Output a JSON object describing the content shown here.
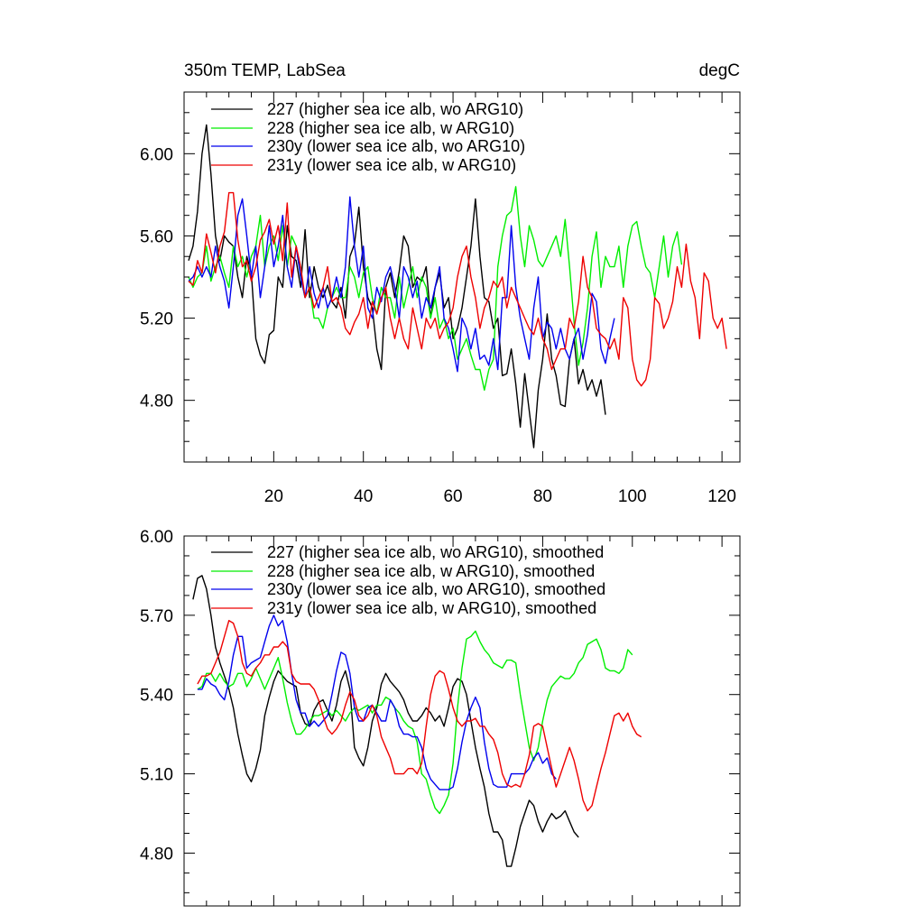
{
  "chart_data": [
    {
      "type": "line",
      "title": "350m TEMP, LabSea",
      "units": "degC",
      "xlim": [
        0,
        124
      ],
      "ylim": [
        4.5,
        6.3
      ],
      "xticks": [
        20,
        40,
        60,
        80,
        100,
        120
      ],
      "xtick_labels": [
        "20",
        "40",
        "60",
        "80",
        "100",
        "120"
      ],
      "yticks": [
        4.8,
        5.2,
        5.6,
        6.0
      ],
      "ytick_labels": [
        "4.80",
        "5.20",
        "5.60",
        "6.00"
      ],
      "legend_position": "top-left",
      "series": [
        {
          "name": "227 (higher sea ice alb, wo ARG10)",
          "color": "#000000",
          "x_start": 1,
          "values": [
            5.48,
            5.55,
            5.72,
            6.0,
            6.14,
            5.9,
            5.6,
            5.48,
            5.6,
            5.57,
            5.55,
            5.4,
            5.3,
            5.5,
            5.42,
            5.1,
            5.02,
            4.98,
            5.12,
            5.14,
            5.4,
            5.35,
            5.65,
            5.5,
            5.48,
            5.35,
            5.63,
            5.3,
            5.45,
            5.35,
            5.3,
            5.36,
            5.28,
            5.25,
            5.35,
            5.2,
            5.5,
            5.56,
            5.74,
            5.45,
            5.3,
            5.25,
            5.05,
            4.95,
            5.35,
            5.42,
            5.3,
            5.43,
            5.6,
            5.55,
            5.35,
            5.4,
            5.38,
            5.45,
            5.2,
            5.35,
            5.42,
            5.25,
            5.3,
            5.1,
            5.15,
            5.25,
            5.4,
            5.55,
            5.78,
            5.5,
            5.3,
            5.28,
            5.15,
            5.2,
            4.92,
            4.93,
            5.05,
            4.88,
            4.67,
            4.93,
            4.75,
            4.57,
            4.85,
            5.0,
            5.22,
            5.0,
            4.92,
            4.78,
            4.77,
            5.0,
            5.1,
            4.88,
            4.95,
            4.85,
            4.9,
            4.82,
            4.9,
            4.73
          ]
        },
        {
          "name": "228 (higher sea ice alb, w ARG10)",
          "color": "#00ee00",
          "x_start": 1,
          "values": [
            5.4,
            5.35,
            5.4,
            5.42,
            5.55,
            5.38,
            5.45,
            5.5,
            5.42,
            5.35,
            5.55,
            5.45,
            5.5,
            5.4,
            5.5,
            5.55,
            5.7,
            5.45,
            5.55,
            5.6,
            5.48,
            5.65,
            5.45,
            5.6,
            5.55,
            5.4,
            5.3,
            5.35,
            5.2,
            5.2,
            5.15,
            5.25,
            5.3,
            5.35,
            5.3,
            5.3,
            5.45,
            5.4,
            5.3,
            5.42,
            5.45,
            5.3,
            5.22,
            5.35,
            5.3,
            5.3,
            5.2,
            5.4,
            5.25,
            5.35,
            5.45,
            5.3,
            5.4,
            5.35,
            5.2,
            5.3,
            5.15,
            5.2,
            5.1,
            5.15,
            5.0,
            5.05,
            5.1,
            5.02,
            4.95,
            4.95,
            4.85,
            4.95,
            5.0,
            5.45,
            5.6,
            5.7,
            5.72,
            5.84,
            5.6,
            5.45,
            5.65,
            5.58,
            5.48,
            5.45,
            5.5,
            5.55,
            5.6,
            5.5,
            5.68,
            5.45,
            5.18,
            4.97,
            5.08,
            5.25,
            5.5,
            5.62,
            5.35,
            5.5,
            5.45,
            5.45,
            5.55,
            5.35,
            5.55,
            5.65,
            5.67,
            5.55,
            5.45,
            5.42,
            5.3,
            5.45,
            5.6,
            5.4,
            5.55,
            5.62,
            5.46
          ]
        },
        {
          "name": "230y (lower sea ice alb, wo ARG10)",
          "color": "#0000ee",
          "x_start": 1,
          "values": [
            5.38,
            5.4,
            5.45,
            5.4,
            5.45,
            5.4,
            5.55,
            5.45,
            5.38,
            5.25,
            5.45,
            5.7,
            5.78,
            5.6,
            5.4,
            5.55,
            5.3,
            5.45,
            5.65,
            5.45,
            5.55,
            5.7,
            5.45,
            5.35,
            5.55,
            5.4,
            5.3,
            5.45,
            5.32,
            5.25,
            5.35,
            5.25,
            5.3,
            5.4,
            5.3,
            5.45,
            5.79,
            5.55,
            5.4,
            5.55,
            5.25,
            5.2,
            5.35,
            5.28,
            5.4,
            5.45,
            5.35,
            5.2,
            5.45,
            5.4,
            5.3,
            5.38,
            5.2,
            5.3,
            5.25,
            5.35,
            5.45,
            5.2,
            5.15,
            5.05,
            4.94,
            5.2,
            5.15,
            5.05,
            5.15,
            5.0,
            5.02,
            4.97,
            5.1,
            4.95,
            5.3,
            5.3,
            5.65,
            5.35,
            5.2,
            5.1,
            5.0,
            5.25,
            5.4,
            5.1,
            5.18,
            5.15,
            5.05,
            5.15,
            5.05,
            5.0,
            5.1,
            5.15,
            5.0,
            5.12,
            5.32,
            5.28,
            5.05,
            4.98,
            5.1,
            5.2
          ]
        },
        {
          "name": "231y (lower sea ice alb, w ARG10)",
          "color": "#ee0000",
          "x_start": 1,
          "values": [
            5.38,
            5.36,
            5.48,
            5.42,
            5.61,
            5.52,
            5.42,
            5.55,
            5.62,
            5.81,
            5.81,
            5.58,
            5.45,
            5.48,
            5.38,
            5.45,
            5.58,
            5.62,
            5.68,
            5.56,
            5.65,
            5.48,
            5.76,
            5.4,
            5.55,
            5.45,
            5.3,
            5.35,
            5.25,
            5.3,
            5.35,
            5.45,
            5.28,
            5.3,
            5.25,
            5.15,
            5.12,
            5.18,
            5.22,
            5.3,
            5.15,
            5.28,
            5.22,
            5.3,
            5.35,
            5.2,
            5.1,
            5.2,
            5.1,
            5.05,
            5.25,
            5.15,
            5.05,
            5.2,
            5.15,
            5.2,
            5.1,
            5.15,
            5.18,
            5.25,
            5.4,
            5.5,
            5.55,
            5.4,
            5.3,
            5.15,
            5.25,
            5.3,
            5.38,
            5.35,
            5.4,
            5.25,
            5.35,
            5.3,
            5.25,
            5.2,
            5.15,
            5.12,
            5.2,
            5.1,
            5.05,
            4.95,
            5.0,
            5.05,
            5.05,
            5.2,
            5.15,
            5.28,
            5.5,
            5.35,
            5.3,
            5.15,
            5.12,
            5.1,
            5.05,
            5.1,
            5.0,
            5.3,
            5.25,
            5.0,
            4.9,
            4.87,
            4.9,
            5.0,
            5.3,
            5.27,
            5.15,
            5.2,
            5.28,
            5.45,
            5.35,
            5.56,
            5.38,
            5.3,
            5.1,
            5.42,
            5.38,
            5.2,
            5.15,
            5.2,
            5.05
          ]
        }
      ]
    },
    {
      "type": "line",
      "title": "",
      "xlim": [
        0,
        124
      ],
      "ylim": [
        4.6,
        6.0
      ],
      "xticks": [
        20,
        40,
        60,
        80,
        100,
        120
      ],
      "yticks": [
        4.8,
        5.1,
        5.4,
        5.7,
        6.0
      ],
      "ytick_labels": [
        "4.80",
        "5.10",
        "5.40",
        "5.70",
        "6.00"
      ],
      "legend_position": "top-left",
      "series": [
        {
          "name": "227 (higher sea ice alb, wo ARG10), smoothed",
          "color": "#000000",
          "x_start": 2,
          "values": [
            5.76,
            5.84,
            5.85,
            5.8,
            5.7,
            5.58,
            5.52,
            5.47,
            5.42,
            5.35,
            5.25,
            5.17,
            5.1,
            5.07,
            5.12,
            5.19,
            5.32,
            5.39,
            5.45,
            5.49,
            5.47,
            5.45,
            5.44,
            5.43,
            5.33,
            5.29,
            5.28,
            5.34,
            5.37,
            5.38,
            5.34,
            5.3,
            5.36,
            5.45,
            5.49,
            5.42,
            5.2,
            5.16,
            5.13,
            5.2,
            5.3,
            5.35,
            5.44,
            5.48,
            5.45,
            5.43,
            5.41,
            5.38,
            5.33,
            5.3,
            5.3,
            5.32,
            5.35,
            5.33,
            5.3,
            5.32,
            5.28,
            5.35,
            5.43,
            5.46,
            5.45,
            5.4,
            5.3,
            5.2,
            5.12,
            5.05,
            4.95,
            4.88,
            4.88,
            4.85,
            4.75,
            4.75,
            4.82,
            4.9,
            4.95,
            5.0,
            4.98,
            4.92,
            4.88,
            4.92,
            4.95,
            4.93,
            4.94,
            4.96,
            4.92,
            4.88,
            4.86
          ]
        },
        {
          "name": "228 (higher sea ice alb, w ARG10), smoothed",
          "color": "#00ee00",
          "x_start": 3,
          "values": [
            5.42,
            5.43,
            5.48,
            5.48,
            5.45,
            5.48,
            5.45,
            5.43,
            5.44,
            5.48,
            5.48,
            5.43,
            5.46,
            5.5,
            5.46,
            5.42,
            5.46,
            5.5,
            5.54,
            5.46,
            5.37,
            5.3,
            5.25,
            5.25,
            5.27,
            5.3,
            5.32,
            5.32,
            5.33,
            5.34,
            5.32,
            5.34,
            5.32,
            5.3,
            5.33,
            5.35,
            5.34,
            5.35,
            5.36,
            5.33,
            5.36,
            5.36,
            5.39,
            5.38,
            5.35,
            5.33,
            5.3,
            5.28,
            5.27,
            5.22,
            5.1,
            5.08,
            5.02,
            4.97,
            4.95,
            4.98,
            5.02,
            5.14,
            5.35,
            5.5,
            5.61,
            5.62,
            5.64,
            5.6,
            5.57,
            5.55,
            5.52,
            5.51,
            5.5,
            5.53,
            5.53,
            5.52,
            5.4,
            5.3,
            5.2,
            5.15,
            5.2,
            5.3,
            5.38,
            5.43,
            5.45,
            5.47,
            5.46,
            5.46,
            5.48,
            5.52,
            5.54,
            5.59,
            5.6,
            5.61,
            5.57,
            5.5,
            5.49,
            5.49,
            5.48,
            5.5,
            5.57,
            5.55
          ]
        },
        {
          "name": "230y (lower sea ice alb, wo ARG10), smoothed",
          "color": "#0000ee",
          "x_start": 3,
          "values": [
            5.42,
            5.42,
            5.46,
            5.44,
            5.43,
            5.4,
            5.38,
            5.45,
            5.55,
            5.62,
            5.62,
            5.5,
            5.52,
            5.53,
            5.54,
            5.6,
            5.66,
            5.7,
            5.66,
            5.68,
            5.6,
            5.48,
            5.38,
            5.33,
            5.33,
            5.28,
            5.3,
            5.28,
            5.3,
            5.32,
            5.4,
            5.49,
            5.56,
            5.55,
            5.48,
            5.35,
            5.3,
            5.3,
            5.35,
            5.36,
            5.33,
            5.3,
            5.3,
            5.38,
            5.35,
            5.28,
            5.25,
            5.25,
            5.24,
            5.24,
            5.2,
            5.12,
            5.08,
            5.06,
            5.04,
            5.04,
            5.04,
            5.05,
            5.12,
            5.22,
            5.3,
            5.35,
            5.39,
            5.35,
            5.22,
            5.12,
            5.06,
            5.05,
            5.05,
            5.05,
            5.1,
            5.1,
            5.1,
            5.1,
            5.12,
            5.16,
            5.18,
            5.14,
            5.16,
            5.1,
            5.08
          ]
        },
        {
          "name": "231y (lower sea ice alb, w ARG10), smoothed",
          "color": "#ee0000",
          "x_start": 3,
          "values": [
            5.44,
            5.47,
            5.47,
            5.48,
            5.52,
            5.56,
            5.62,
            5.68,
            5.67,
            5.62,
            5.52,
            5.48,
            5.47,
            5.5,
            5.52,
            5.55,
            5.55,
            5.58,
            5.58,
            5.6,
            5.58,
            5.48,
            5.45,
            5.44,
            5.44,
            5.44,
            5.42,
            5.38,
            5.32,
            5.27,
            5.25,
            5.27,
            5.3,
            5.36,
            5.41,
            5.38,
            5.32,
            5.3,
            5.32,
            5.36,
            5.32,
            5.24,
            5.2,
            5.16,
            5.1,
            5.1,
            5.1,
            5.12,
            5.12,
            5.1,
            5.14,
            5.28,
            5.4,
            5.47,
            5.49,
            5.48,
            5.42,
            5.35,
            5.3,
            5.28,
            5.3,
            5.3,
            5.31,
            5.28,
            5.28,
            5.25,
            5.23,
            5.18,
            5.1,
            5.06,
            5.05,
            5.06,
            5.05,
            5.1,
            5.17,
            5.28,
            5.29,
            5.28,
            5.2,
            5.12,
            5.05,
            5.1,
            5.15,
            5.2,
            5.15,
            5.08,
            5.0,
            4.96,
            4.98,
            5.05,
            5.12,
            5.18,
            5.25,
            5.32,
            5.33,
            5.3,
            5.33,
            5.28,
            5.25,
            5.24
          ]
        }
      ]
    }
  ]
}
